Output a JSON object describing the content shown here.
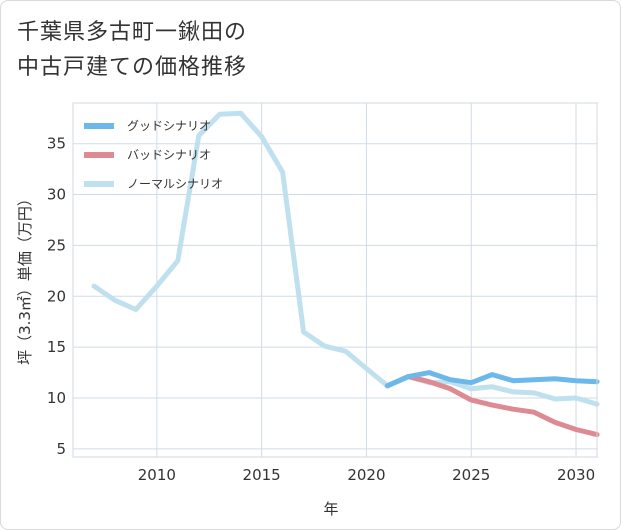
{
  "title": {
    "line1": "千葉県多古町一鍬田の",
    "line2": "中古戸建ての価格推移"
  },
  "chart_data": {
    "type": "line",
    "xlabel": "年",
    "ylabel": "坪（3.3㎡）単価（万円）",
    "xlim": [
      2006,
      2031
    ],
    "ylim": [
      4.2,
      39
    ],
    "xticks": [
      2010,
      2015,
      2020,
      2025,
      2030
    ],
    "yticks": [
      5,
      10,
      15,
      20,
      25,
      30,
      35
    ],
    "grid": true,
    "legend_position": "top-left",
    "series": [
      {
        "name": "グッドシナリオ",
        "color": "#6cb8ea",
        "points": [
          [
            2021,
            11.2
          ],
          [
            2022,
            12.1
          ],
          [
            2023,
            12.5
          ],
          [
            2024,
            11.8
          ],
          [
            2025,
            11.5
          ],
          [
            2026,
            12.3
          ],
          [
            2027,
            11.7
          ],
          [
            2028,
            11.8
          ],
          [
            2029,
            11.9
          ],
          [
            2030,
            11.7
          ],
          [
            2031,
            11.6
          ]
        ]
      },
      {
        "name": "バッドシナリオ",
        "color": "#dd8a92",
        "points": [
          [
            2021,
            11.2
          ],
          [
            2022,
            12.1
          ],
          [
            2023,
            11.6
          ],
          [
            2024,
            10.9
          ],
          [
            2025,
            9.8
          ],
          [
            2026,
            9.3
          ],
          [
            2027,
            8.9
          ],
          [
            2028,
            8.6
          ],
          [
            2029,
            7.6
          ],
          [
            2030,
            6.9
          ],
          [
            2031,
            6.4
          ]
        ]
      },
      {
        "name": "ノーマルシナリオ",
        "color": "#bfe0ee",
        "points": [
          [
            2007,
            21.0
          ],
          [
            2008,
            19.6
          ],
          [
            2009,
            18.7
          ],
          [
            2010,
            21.0
          ],
          [
            2011,
            23.5
          ],
          [
            2012,
            35.8
          ],
          [
            2013,
            37.9
          ],
          [
            2014,
            38.0
          ],
          [
            2015,
            35.7
          ],
          [
            2016,
            32.2
          ],
          [
            2017,
            16.5
          ],
          [
            2018,
            15.1
          ],
          [
            2019,
            14.6
          ],
          [
            2020,
            12.9
          ],
          [
            2021,
            11.2
          ],
          [
            2022,
            12.1
          ],
          [
            2023,
            11.5
          ],
          [
            2024,
            11.6
          ],
          [
            2025,
            10.9
          ],
          [
            2026,
            11.1
          ],
          [
            2027,
            10.6
          ],
          [
            2028,
            10.5
          ],
          [
            2029,
            9.9
          ],
          [
            2030,
            10.0
          ],
          [
            2031,
            9.4
          ]
        ]
      }
    ]
  }
}
